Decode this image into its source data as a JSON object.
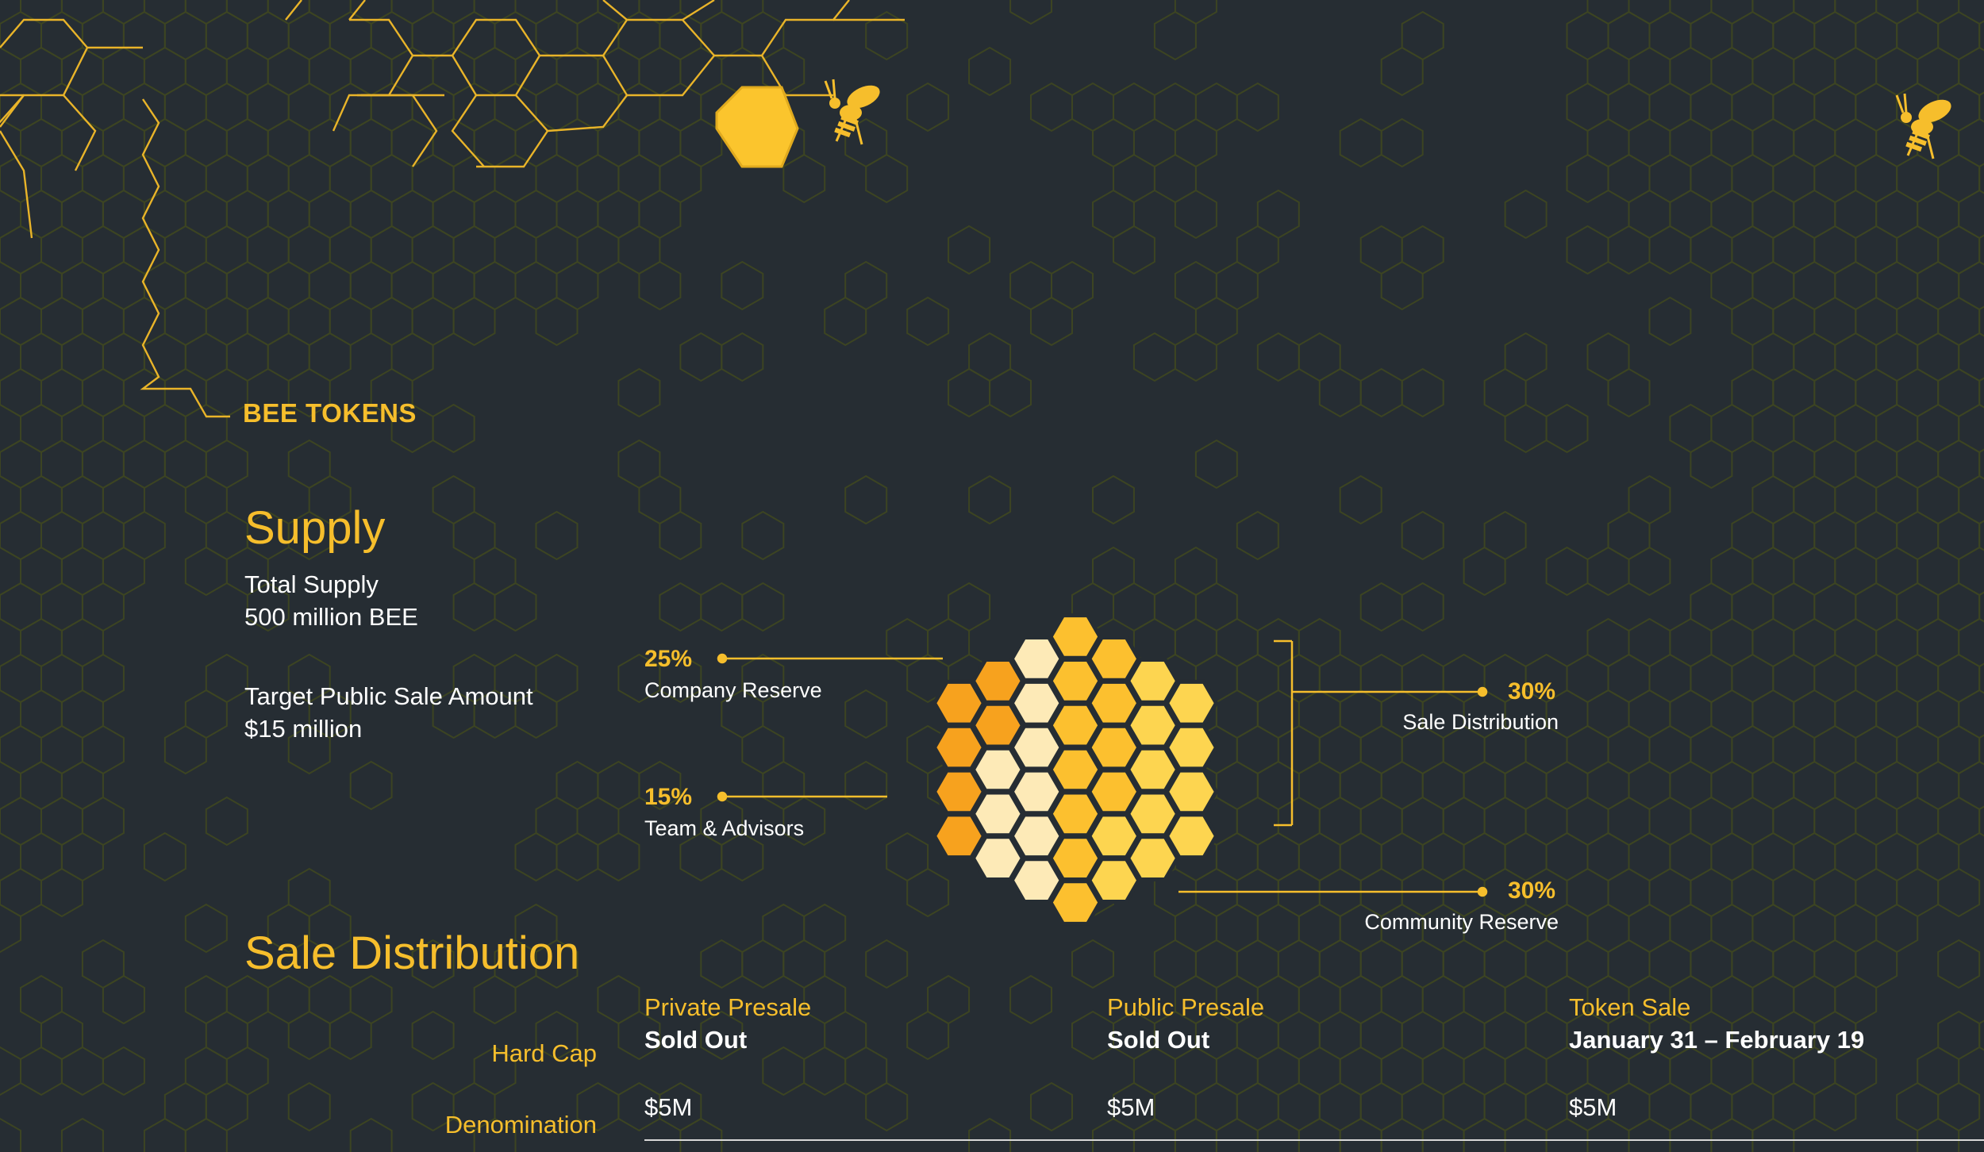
{
  "section": {
    "eyebrow": "BEE TOKENS"
  },
  "supply": {
    "title": "Supply",
    "total_label": "Total Supply",
    "total_value": "500 million BEE",
    "target_label": "Target Public Sale Amount",
    "target_value": "$15 million"
  },
  "chart_data": {
    "type": "pie",
    "title": "",
    "categories": [
      "Company Reserve",
      "Team & Advisors",
      "Sale Distribution",
      "Community Reserve"
    ],
    "values": [
      25,
      15,
      30,
      30
    ],
    "labels": [
      "25%",
      "15%",
      "30%",
      "30%"
    ],
    "colors": {
      "Company Reserve": "#fdeab7",
      "Team & Advisors": "#f7a21e",
      "Sale Distribution": "#fcc02f",
      "Community Reserve": "#fdd550"
    }
  },
  "sale": {
    "title": "Sale Distribution",
    "row_labels": {
      "hard_cap": "Hard Cap",
      "denomination": "Denomination"
    },
    "columns": [
      {
        "name": "Private Presale",
        "status": "Sold Out",
        "hard_cap": "$5M"
      },
      {
        "name": "Public Presale",
        "status": "Sold Out",
        "hard_cap": "$5M"
      },
      {
        "name": "Token Sale",
        "status": "January 31 – February 19",
        "hard_cap": "$5M"
      }
    ]
  },
  "icons": {
    "bee_left": "bee-icon",
    "bee_right": "bee-icon"
  },
  "colors": {
    "background": "#262d33",
    "accent": "#f6be2c",
    "text": "#ffffff"
  }
}
